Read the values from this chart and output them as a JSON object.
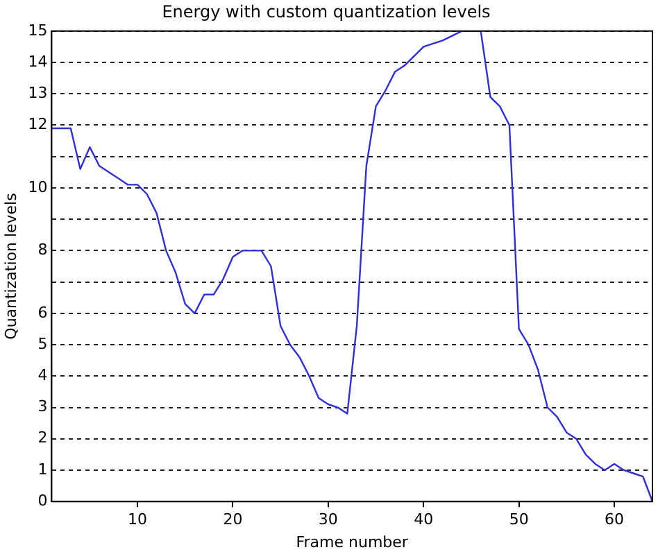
{
  "chart_data": {
    "type": "line",
    "title": "Energy with custom quantization levels",
    "xlabel": "Frame number",
    "ylabel": "Quantization levels",
    "x": [
      1,
      2,
      3,
      4,
      5,
      6,
      7,
      8,
      9,
      10,
      11,
      12,
      13,
      14,
      15,
      16,
      17,
      18,
      19,
      20,
      21,
      22,
      23,
      24,
      25,
      26,
      27,
      28,
      29,
      30,
      31,
      32,
      33,
      34,
      35,
      36,
      37,
      38,
      40,
      42,
      44,
      46,
      47,
      48,
      49,
      50,
      51,
      52,
      53,
      54,
      55,
      56,
      57,
      58,
      59,
      60,
      61,
      62,
      63,
      64
    ],
    "series": [
      {
        "color": "#2f2fd8",
        "values": [
          11.9,
          11.9,
          11.9,
          10.6,
          11.3,
          10.7,
          10.5,
          10.3,
          10.1,
          10.1,
          9.8,
          9.2,
          8,
          7.3,
          6.3,
          6,
          6.6,
          6.6,
          7.1,
          7.8,
          8,
          8,
          8,
          7.5,
          5.6,
          5,
          4.6,
          4,
          3.3,
          3.1,
          3,
          2.8,
          5.6,
          10.7,
          12.6,
          13.1,
          13.7,
          13.9,
          14.5,
          14.7,
          15,
          15,
          12.9,
          12.6,
          12,
          5.5,
          5,
          4.2,
          3,
          2.7,
          2.2,
          2,
          1.5,
          1.2,
          1,
          1.2,
          1,
          0.9,
          0.8,
          0
        ]
      }
    ],
    "xlim": [
      1,
      64
    ],
    "xticks": [
      10,
      20,
      30,
      40,
      50,
      60
    ],
    "ylim": [
      0,
      15
    ],
    "yticks": [
      0,
      1,
      2,
      3,
      4,
      5,
      6,
      {
        "value": 7,
        "label": null
      },
      8,
      {
        "value": 9,
        "label": null
      },
      10,
      {
        "value": 11,
        "label": null
      },
      12,
      13,
      14,
      15
    ],
    "grid": "y",
    "line_style": "solid",
    "marker": "none",
    "legend": false
  }
}
